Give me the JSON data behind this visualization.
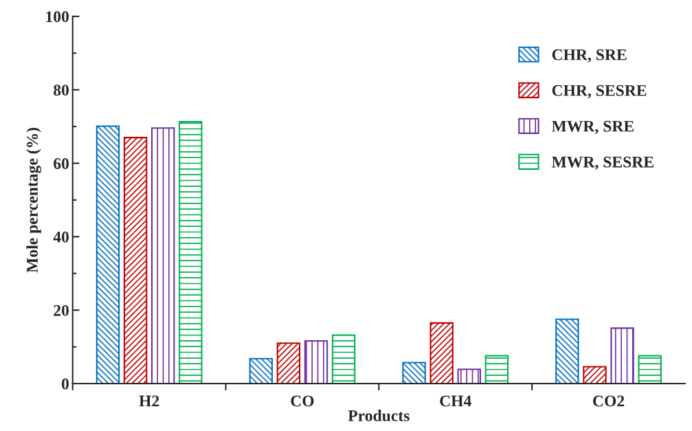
{
  "chart_data": {
    "type": "bar",
    "xlabel": "Products",
    "ylabel": "Mole percentage (%)",
    "categories": [
      "H2",
      "CO",
      "CH4",
      "CO2"
    ],
    "series": [
      {
        "name": "CHR, SRE",
        "color": "#0070c0",
        "values": [
          70.1,
          6.8,
          5.7,
          17.5
        ]
      },
      {
        "name": "CHR, SESRE",
        "color": "#c00000",
        "values": [
          67.0,
          11.0,
          16.5,
          4.6
        ]
      },
      {
        "name": "MWR, SRE",
        "color": "#7030a0",
        "values": [
          69.6,
          11.6,
          3.9,
          15.1
        ]
      },
      {
        "name": "MWR, SESRE",
        "color": "#00b050",
        "values": [
          71.3,
          13.2,
          7.6,
          7.6
        ]
      }
    ],
    "ylim": [
      0,
      100
    ],
    "yticks": [
      0,
      20,
      40,
      60,
      80,
      100
    ],
    "grid": false,
    "legend": "top right"
  }
}
